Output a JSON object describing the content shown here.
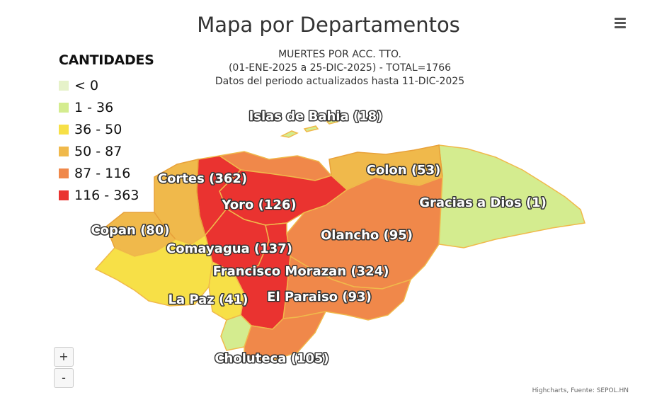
{
  "header": {
    "title": "Mapa por Departamentos",
    "subtitle_lines": [
      "MUERTES POR ACC. TTO.",
      "(01-ENE-2025 a 25-DIC-2025) - TOTAL=1766",
      "Datos del periodo actualizados hasta 11-DIC-2025"
    ]
  },
  "legend": {
    "title": "CANTIDADES",
    "items": [
      {
        "label": "< 0",
        "color": "#e6f2c9"
      },
      {
        "label": "1 - 36",
        "color": "#d4ec8f"
      },
      {
        "label": "36 - 50",
        "color": "#f7e047"
      },
      {
        "label": "50 - 87",
        "color": "#f0b94b"
      },
      {
        "label": "87 - 116",
        "color": "#f0884a"
      },
      {
        "label": "116 - 363",
        "color": "#ea3330"
      }
    ]
  },
  "map": {
    "departments": [
      {
        "name": "Islas de Bahia",
        "value": 18,
        "label": "Islas de Bahia (18)"
      },
      {
        "name": "Colon",
        "value": 53,
        "label": "Colon (53)"
      },
      {
        "name": "Gracias a Dios",
        "value": 1,
        "label": "Gracias a Dios (1)"
      },
      {
        "name": "Cortes",
        "value": 362,
        "label": "Cortes (362)"
      },
      {
        "name": "Yoro",
        "value": 126,
        "label": "Yoro (126)"
      },
      {
        "name": "Olancho",
        "value": 95,
        "label": "Olancho (95)"
      },
      {
        "name": "Copan",
        "value": 80,
        "label": "Copan (80)"
      },
      {
        "name": "Comayagua",
        "value": 137,
        "label": "Comayagua (137)"
      },
      {
        "name": "Francisco Morazan",
        "value": 324,
        "label": "Francisco Morazan (324)"
      },
      {
        "name": "La Paz",
        "value": 41,
        "label": "La Paz (41)"
      },
      {
        "name": "El Paraiso",
        "value": 93,
        "label": "El Paraiso (93)"
      },
      {
        "name": "Choluteca",
        "value": 105,
        "label": "Choluteca (105)"
      }
    ]
  },
  "controls": {
    "zoom_in": "+",
    "zoom_out": "-"
  },
  "credits": "Highcharts, Fuente: SEPOL.HN"
}
